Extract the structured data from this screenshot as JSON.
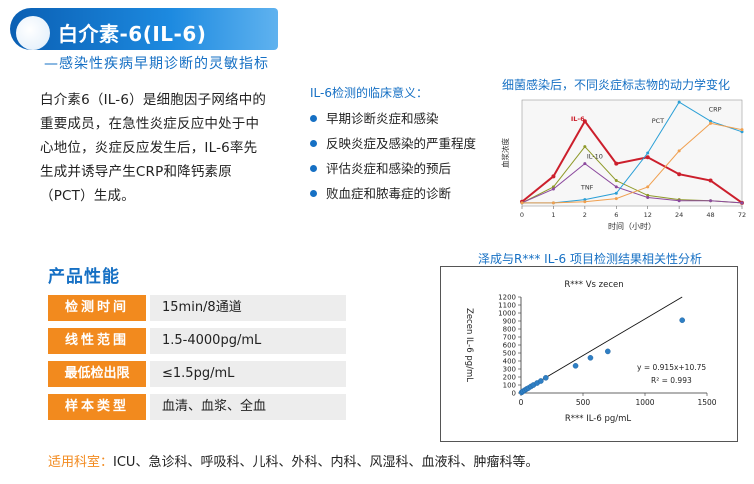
{
  "header": {
    "title": "白介素-6(IL-6)",
    "subtitle": "—感染性疾病早期诊断的灵敏指标"
  },
  "description": "白介素6（IL-6）是细胞因子网络中的重要成员，在急性炎症反应中处于中心地位，炎症反应发生后，IL-6率先生成并诱导产生CRP和降钙素原（PCT）生成。",
  "clinical": {
    "title": "IL-6检测的临床意义：",
    "items": [
      "早期诊断炎症和感染",
      "反映炎症及感染的严重程度",
      "评估炎症和感染的预后",
      "败血症和脓毒症的诊断"
    ]
  },
  "performance": {
    "title": "产品性能",
    "rows": [
      {
        "label": "检测时间",
        "value": "15min/8通道"
      },
      {
        "label": "线性范围",
        "value": "1.5-4000pg/mL"
      },
      {
        "label": "最低检出限",
        "value": "≤1.5pg/mL"
      },
      {
        "label": "样本类型",
        "value": "血清、血浆、全血"
      }
    ]
  },
  "applicable": {
    "label": "适用科室：",
    "text": "ICU、急诊科、呼吸科、儿科、外科、内科、风湿科、血液科、肿瘤科等。"
  },
  "colors": {
    "accent": "#1670c4",
    "orange": "#f28a1e"
  },
  "chart_data": [
    {
      "type": "line",
      "title": "细菌感染后，不同炎症标志物的动力学变化",
      "xlabel": "时间（小时）",
      "ylabel": "血浆浓度",
      "categories": [
        "0",
        "1",
        "2",
        "6",
        "12",
        "24",
        "48",
        "72"
      ],
      "series": [
        {
          "name": "IL-6",
          "color": "#cc1f2c",
          "values": [
            0.04,
            0.28,
            0.8,
            0.4,
            0.46,
            0.3,
            0.24,
            0.03
          ]
        },
        {
          "name": "IL-10",
          "color": "#8f9a2a",
          "values": [
            0.03,
            0.18,
            0.56,
            0.24,
            0.1,
            0.06,
            0.05,
            0.03
          ]
        },
        {
          "name": "TNF",
          "color": "#8c4a9e",
          "values": [
            0.03,
            0.16,
            0.4,
            0.18,
            0.08,
            0.05,
            0.05,
            0.03
          ]
        },
        {
          "name": "PCT",
          "color": "#2a9fd6",
          "values": [
            0.03,
            0.03,
            0.06,
            0.12,
            0.5,
            0.98,
            0.8,
            0.7
          ]
        },
        {
          "name": "CRP",
          "color": "#f0a050",
          "values": [
            0.03,
            0.03,
            0.04,
            0.07,
            0.18,
            0.52,
            0.78,
            0.72
          ]
        }
      ]
    },
    {
      "type": "scatter",
      "heading": "泽成与R*** IL-6 项目检测结果相关性分析",
      "title": "R*** Vs zecen",
      "xlabel": "R*** IL-6 pg/mL",
      "ylabel": "Zecen IL-6 pg/mL",
      "xlim": [
        0,
        1500
      ],
      "ylim": [
        0,
        1200
      ],
      "xticks": [
        0,
        500,
        1000,
        1500
      ],
      "yticks": [
        0,
        100,
        200,
        300,
        400,
        500,
        600,
        700,
        800,
        900,
        1000,
        1100,
        1200
      ],
      "equation": "y = 0.915x+10.75",
      "r2": "R² = 0.993",
      "points": [
        [
          5,
          8
        ],
        [
          15,
          20
        ],
        [
          30,
          35
        ],
        [
          45,
          50
        ],
        [
          60,
          62
        ],
        [
          80,
          82
        ],
        [
          100,
          100
        ],
        [
          130,
          125
        ],
        [
          160,
          150
        ],
        [
          200,
          190
        ],
        [
          440,
          340
        ],
        [
          560,
          440
        ],
        [
          700,
          520
        ],
        [
          1300,
          910
        ]
      ],
      "fit": {
        "slope": 0.915,
        "intercept": 10.75
      }
    }
  ]
}
